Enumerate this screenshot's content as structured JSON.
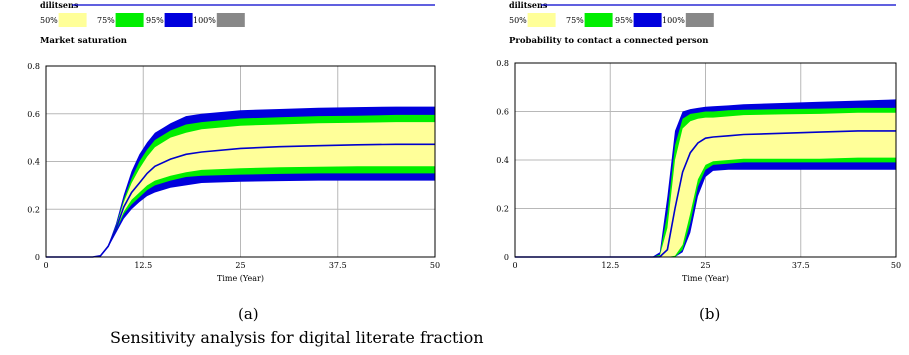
{
  "colors": {
    "band50": "#ffff99",
    "band75": "#00ee00",
    "band95": "#0000dd",
    "band100": "#888888",
    "median": "#0000cc",
    "header_rule": "#0000cc",
    "grid": "#b8b8b8"
  },
  "chart_data": [
    {
      "type": "area",
      "subtitle": "(a)",
      "header": "dilitsens",
      "legend": [
        "50%",
        "75%",
        "95%",
        "100%"
      ],
      "title": "Market saturation",
      "xlabel": "Time (Year)",
      "xlim": [
        0,
        50
      ],
      "ylim": [
        0,
        0.8
      ],
      "xticks": [
        "0",
        "12.5",
        "25",
        "37.5",
        "50"
      ],
      "yticks": [
        "0",
        "0.2",
        "0.4",
        "0.6",
        "0.8"
      ],
      "x": [
        0,
        6,
        7,
        8,
        9,
        10,
        11,
        12,
        13,
        14,
        16,
        18,
        20,
        25,
        30,
        35,
        40,
        45,
        50
      ],
      "series": [
        {
          "name": "100%",
          "lower": [
            0,
            0,
            0.005,
            0.04,
            0.1,
            0.16,
            0.2,
            0.23,
            0.255,
            0.27,
            0.29,
            0.3,
            0.31,
            0.315,
            0.318,
            0.32,
            0.32,
            0.32,
            0.32
          ],
          "upper": [
            0,
            0,
            0.005,
            0.05,
            0.14,
            0.26,
            0.36,
            0.43,
            0.48,
            0.52,
            0.56,
            0.59,
            0.6,
            0.615,
            0.62,
            0.625,
            0.628,
            0.63,
            0.63
          ]
        },
        {
          "name": "95%",
          "lower": [
            0,
            0,
            0.005,
            0.042,
            0.11,
            0.18,
            0.22,
            0.25,
            0.28,
            0.3,
            0.32,
            0.335,
            0.34,
            0.345,
            0.348,
            0.35,
            0.35,
            0.35,
            0.35
          ],
          "upper": [
            0,
            0,
            0.005,
            0.048,
            0.13,
            0.24,
            0.33,
            0.4,
            0.45,
            0.49,
            0.53,
            0.555,
            0.565,
            0.58,
            0.585,
            0.59,
            0.592,
            0.595,
            0.595
          ]
        },
        {
          "name": "75%",
          "lower": [
            0,
            0,
            0.005,
            0.043,
            0.115,
            0.19,
            0.24,
            0.27,
            0.3,
            0.32,
            0.34,
            0.355,
            0.365,
            0.372,
            0.376,
            0.378,
            0.38,
            0.38,
            0.38
          ],
          "upper": [
            0,
            0,
            0.005,
            0.047,
            0.125,
            0.23,
            0.31,
            0.37,
            0.42,
            0.46,
            0.5,
            0.52,
            0.535,
            0.55,
            0.555,
            0.56,
            0.562,
            0.565,
            0.565
          ]
        },
        {
          "name": "50%",
          "lower": [
            0,
            0,
            0.005,
            0.044,
            0.115,
            0.2,
            0.25,
            0.28,
            0.315,
            0.335,
            0.36,
            0.375,
            0.385,
            0.395,
            0.4,
            0.405,
            0.405,
            0.41,
            0.41
          ],
          "upper": [
            0,
            0,
            0.005,
            0.046,
            0.12,
            0.22,
            0.29,
            0.34,
            0.39,
            0.43,
            0.47,
            0.49,
            0.5,
            0.515,
            0.52,
            0.525,
            0.528,
            0.53,
            0.53
          ]
        },
        {
          "name": "median",
          "values": [
            0,
            0,
            0.005,
            0.045,
            0.118,
            0.21,
            0.27,
            0.31,
            0.35,
            0.38,
            0.41,
            0.43,
            0.44,
            0.455,
            0.462,
            0.466,
            0.47,
            0.472,
            0.472
          ]
        }
      ]
    },
    {
      "type": "area",
      "subtitle": "(b)",
      "header": "dilitsens",
      "legend": [
        "50%",
        "75%",
        "95%",
        "100%"
      ],
      "title": "Probability to contact a connected person",
      "xlabel": "Time (Year)",
      "xlim": [
        0,
        50
      ],
      "ylim": [
        0,
        0.8
      ],
      "xticks": [
        "0",
        "12.5",
        "25",
        "37.5",
        "50"
      ],
      "yticks": [
        "0",
        "0.2",
        "0.4",
        "0.6",
        "0.8"
      ],
      "x": [
        0,
        18,
        19,
        20,
        21,
        22,
        23,
        24,
        25,
        26,
        28,
        30,
        35,
        40,
        45,
        50
      ],
      "series": [
        {
          "name": "100%",
          "lower": [
            0,
            0,
            0,
            0,
            0,
            0.02,
            0.1,
            0.25,
            0.33,
            0.355,
            0.36,
            0.36,
            0.36,
            0.36,
            0.36,
            0.36
          ],
          "upper": [
            0,
            0,
            0.02,
            0.25,
            0.52,
            0.6,
            0.61,
            0.615,
            0.62,
            0.622,
            0.625,
            0.63,
            0.635,
            0.64,
            0.645,
            0.65
          ]
        },
        {
          "name": "95%",
          "lower": [
            0,
            0,
            0,
            0,
            0,
            0.03,
            0.14,
            0.29,
            0.36,
            0.38,
            0.385,
            0.39,
            0.39,
            0.39,
            0.39,
            0.39
          ],
          "upper": [
            0,
            0,
            0.01,
            0.18,
            0.46,
            0.57,
            0.59,
            0.595,
            0.6,
            0.6,
            0.605,
            0.607,
            0.61,
            0.612,
            0.615,
            0.615
          ]
        },
        {
          "name": "75%",
          "lower": [
            0,
            0,
            0,
            0,
            0.005,
            0.05,
            0.18,
            0.32,
            0.38,
            0.395,
            0.4,
            0.405,
            0.405,
            0.405,
            0.41,
            0.41
          ],
          "upper": [
            0,
            0,
            0.005,
            0.12,
            0.4,
            0.53,
            0.56,
            0.57,
            0.575,
            0.575,
            0.58,
            0.585,
            0.588,
            0.59,
            0.595,
            0.595
          ]
        },
        {
          "name": "50%",
          "lower": [
            0,
            0,
            0,
            0,
            0.01,
            0.08,
            0.23,
            0.37,
            0.42,
            0.43,
            0.43,
            0.435,
            0.435,
            0.435,
            0.44,
            0.44
          ],
          "upper": [
            0,
            0,
            0.002,
            0.08,
            0.33,
            0.5,
            0.54,
            0.55,
            0.555,
            0.56,
            0.56,
            0.565,
            0.568,
            0.57,
            0.575,
            0.575
          ]
        },
        {
          "name": "median",
          "values": [
            0,
            0,
            0.001,
            0.03,
            0.2,
            0.35,
            0.43,
            0.47,
            0.49,
            0.495,
            0.5,
            0.505,
            0.51,
            0.515,
            0.52,
            0.52
          ]
        }
      ]
    }
  ],
  "caption": "Sensitivity analysis for digital literate fraction"
}
